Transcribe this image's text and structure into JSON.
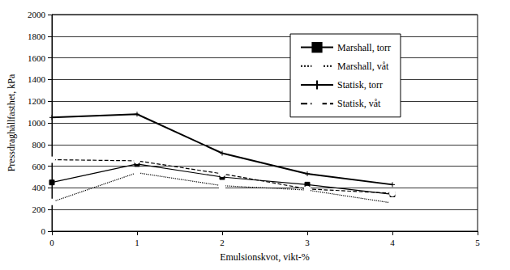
{
  "chart_data": {
    "type": "line",
    "x_label": "Emulsionskvot, vikt-%",
    "y_label": "Pressdraghållfasthet, kPa",
    "xlim": [
      0,
      5
    ],
    "xticks": [
      0,
      1,
      2,
      3,
      4,
      5
    ],
    "ylim": [
      0,
      2000
    ],
    "yticks": [
      0,
      200,
      400,
      600,
      800,
      1000,
      1200,
      1400,
      1600,
      1800,
      2000
    ],
    "grid": true,
    "legend": "upper right",
    "x": [
      0,
      1,
      2,
      3,
      4
    ],
    "series": [
      {
        "name": "Marshall, torr",
        "color": "#000000",
        "marker": "square",
        "line_style": "solid",
        "values": [
          450,
          620,
          500,
          430,
          340
        ]
      },
      {
        "name": "Marshall, våt",
        "color": "#000000",
        "marker": "square_open",
        "line_style": "dotted",
        "values": [
          270,
          540,
          420,
          380,
          260
        ]
      },
      {
        "name": "Statisk, torr",
        "color": "#000000",
        "marker": "cross",
        "line_style": "solid",
        "values": [
          1050,
          1080,
          720,
          530,
          430
        ]
      },
      {
        "name": "Statisk, våt",
        "color": "#000000",
        "marker": "circle_open",
        "line_style": "dashed",
        "values": [
          660,
          650,
          530,
          390,
          350
        ]
      }
    ]
  }
}
